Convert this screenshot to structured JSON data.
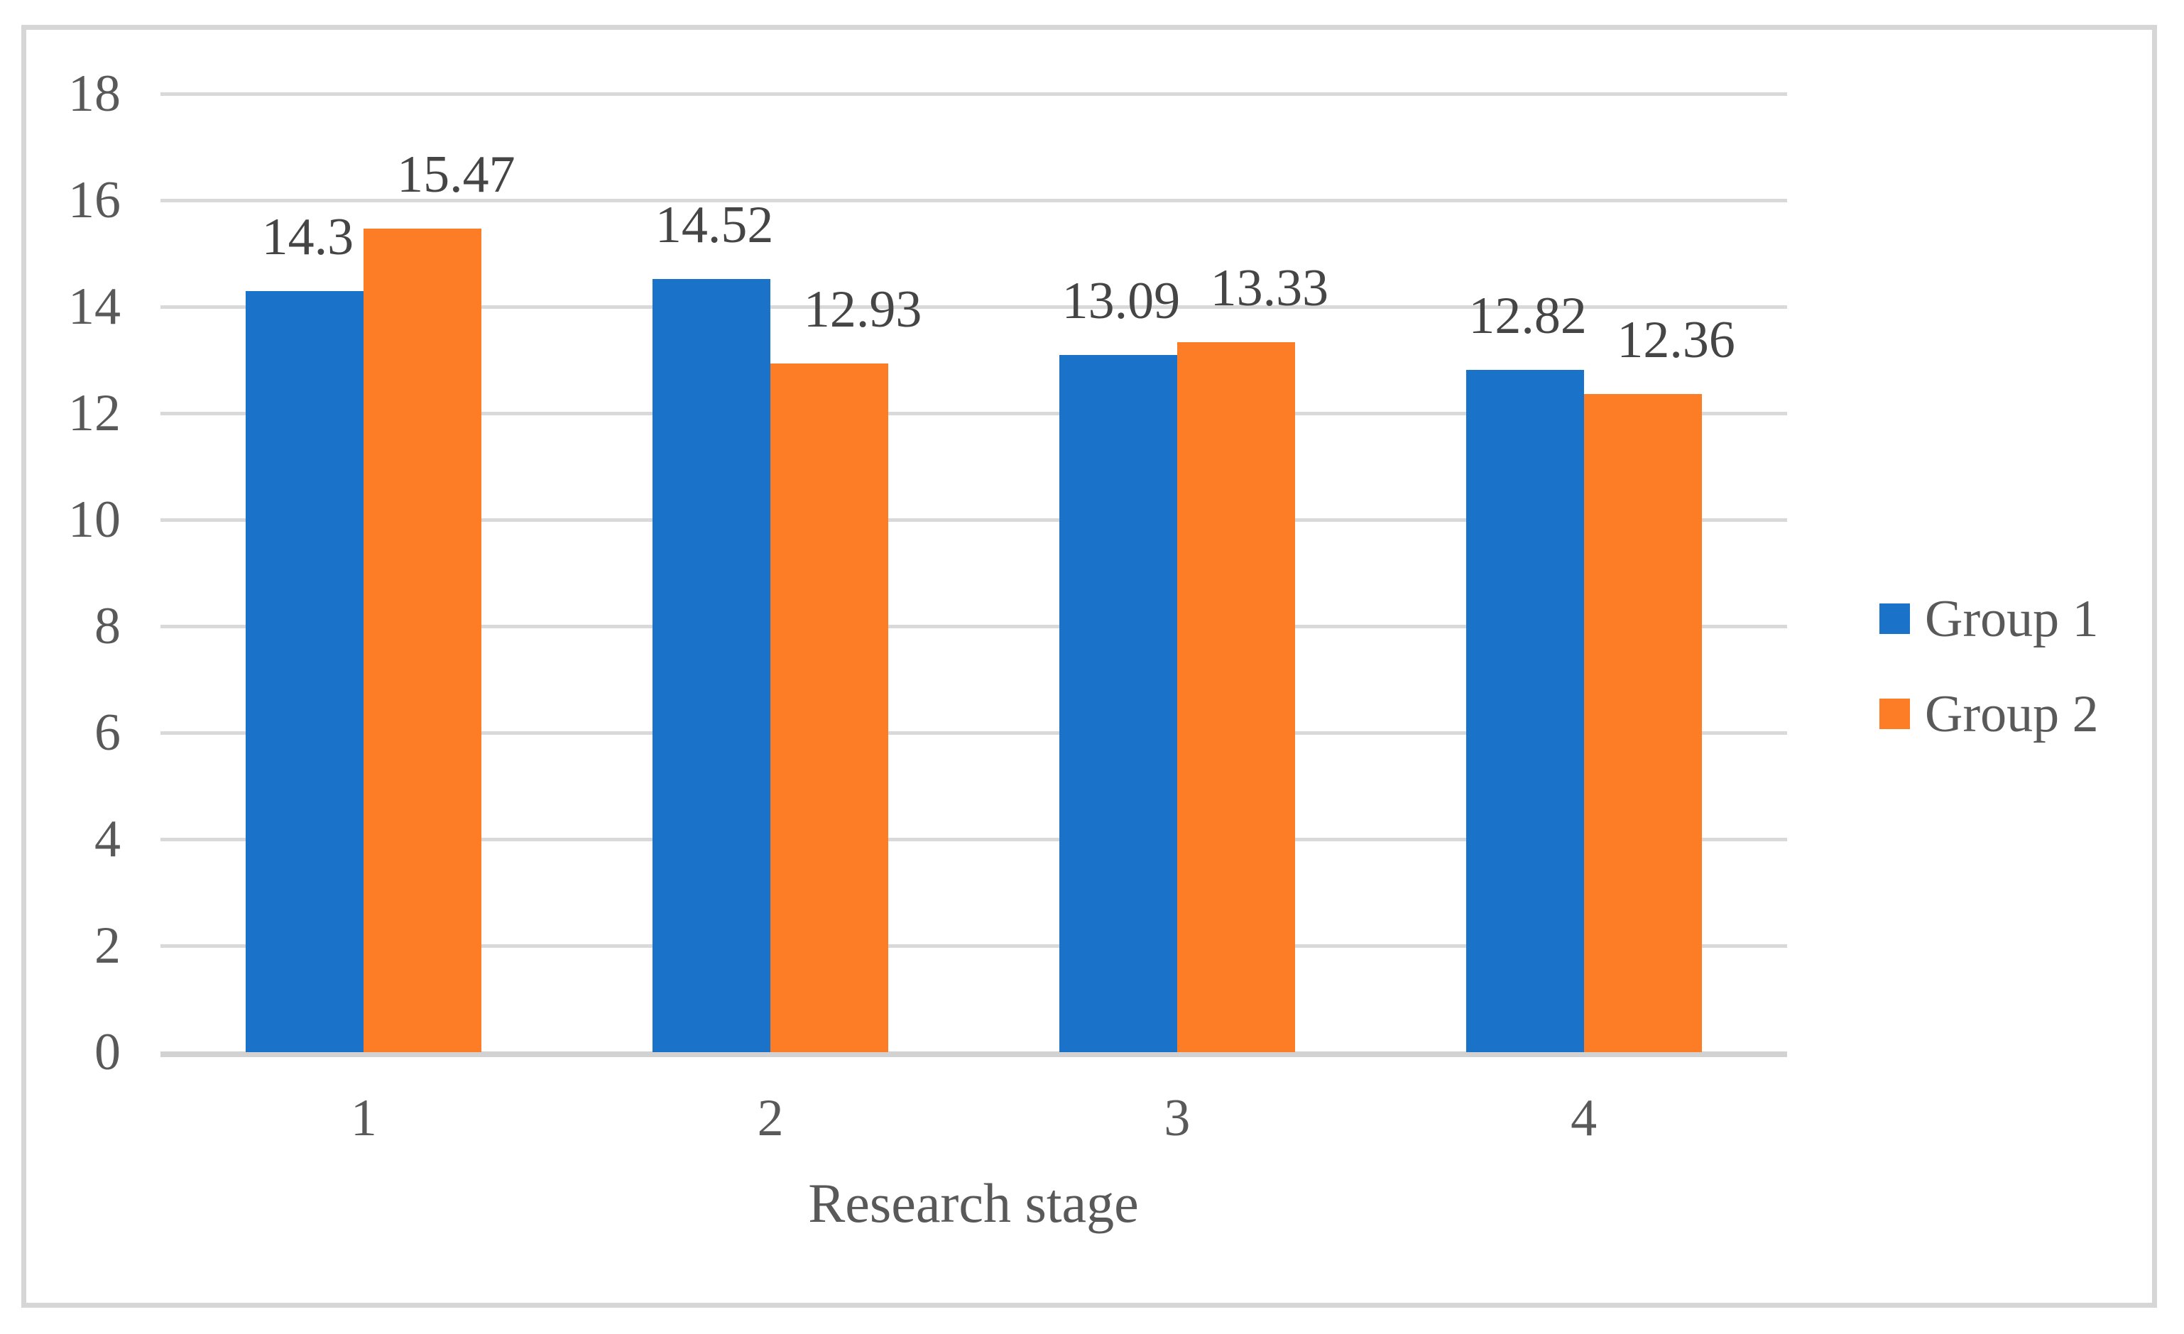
{
  "chart_data": {
    "type": "bar",
    "title": "",
    "categories": [
      "1",
      "2",
      "3",
      "4"
    ],
    "series": [
      {
        "name": "Group 1",
        "color": "#1A73C8",
        "values": [
          14.3,
          14.52,
          13.09,
          12.82
        ],
        "labels": [
          "14.3",
          "14.52",
          "13.09",
          "12.82"
        ]
      },
      {
        "name": "Group 2",
        "color": "#FD7D26",
        "values": [
          15.47,
          12.93,
          13.33,
          12.36
        ],
        "labels": [
          "15.47",
          "12.93",
          "13.33",
          "12.36"
        ]
      }
    ],
    "xlabel": "Research stage",
    "ylabel": "",
    "ylim": [
      0,
      18
    ],
    "ytick_step": 2,
    "yticks": [
      "0",
      "2",
      "4",
      "6",
      "8",
      "10",
      "12",
      "14",
      "16",
      "18"
    ],
    "grid": true,
    "legend_position": "right",
    "data_labels": true
  },
  "colors": {
    "background": "#FFFFFF",
    "frame_border": "#D6D6D6",
    "gridline": "#D9D9D9",
    "axis_line": "#D2D2D2",
    "tick_text": "#595959",
    "data_label_text": "#454545",
    "series1": "#1A73C8",
    "series2": "#FD7D26"
  }
}
